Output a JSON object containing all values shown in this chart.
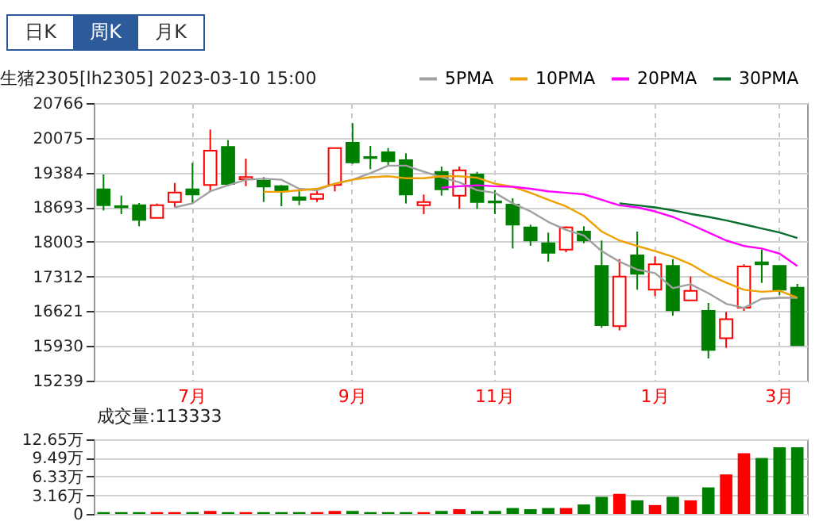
{
  "chart_data": [
    {
      "type": "candlestick",
      "title": "生猪2305[lh2305] 2023-03-10 15:00",
      "annotations": [
        "日K",
        "周K",
        "月K"
      ],
      "categories": [
        null,
        null,
        null,
        null,
        null,
        "7月",
        null,
        null,
        null,
        null,
        null,
        null,
        null,
        null,
        "9月",
        null,
        null,
        null,
        null,
        null,
        null,
        null,
        "11月",
        null,
        null,
        null,
        null,
        null,
        null,
        null,
        null,
        "1月",
        null,
        null,
        null,
        null,
        null,
        null,
        "3月",
        null
      ],
      "ohlc": [
        [
          19050,
          19345,
          18629,
          18734
        ],
        [
          18713,
          18924,
          18555,
          18692
        ],
        [
          18734,
          18776,
          18313,
          18439
        ],
        [
          18482,
          18766,
          18482,
          18734
        ],
        [
          18797,
          19176,
          18692,
          18987
        ],
        [
          19050,
          19576,
          18766,
          18945
        ],
        [
          19134,
          20240,
          19008,
          19819
        ],
        [
          19892,
          20029,
          19113,
          19155
        ],
        [
          19250,
          19661,
          19113,
          19292
        ],
        [
          19219,
          19292,
          18797,
          19103
        ],
        [
          19113,
          19134,
          18713,
          19008
        ],
        [
          18892,
          19029,
          18734,
          18840
        ],
        [
          18861,
          19029,
          18797,
          18955
        ],
        [
          19134,
          19871,
          19008,
          19871
        ],
        [
          19976,
          20366,
          19555,
          19587
        ],
        [
          19692,
          19913,
          19450,
          19671
        ],
        [
          19787,
          19871,
          19503,
          19608
        ],
        [
          19629,
          19766,
          18766,
          18945
        ],
        [
          18734,
          18945,
          18555,
          18797
        ],
        [
          19397,
          19503,
          18924,
          19050
        ],
        [
          18924,
          19503,
          18661,
          19429
        ],
        [
          19345,
          19397,
          18661,
          18797
        ],
        [
          18808,
          19029,
          18555,
          18787
        ],
        [
          18745,
          18871,
          17871,
          18345
        ],
        [
          18292,
          18345,
          17924,
          18029
        ],
        [
          17976,
          18187,
          17608,
          17787
        ],
        [
          17850,
          18313,
          17797,
          18292
        ],
        [
          18208,
          18313,
          17976,
          18029
        ],
        [
          17524,
          18029,
          16292,
          16345
        ],
        [
          16324,
          17661,
          16240,
          17313
        ],
        [
          17734,
          18208,
          17050,
          17366
        ],
        [
          17050,
          17713,
          16924,
          17555
        ],
        [
          17524,
          17661,
          16534,
          16640
        ],
        [
          16839,
          17313,
          16839,
          17029
        ],
        [
          16629,
          16787,
          15681,
          15850
        ],
        [
          16082,
          16608,
          15892,
          16461
        ],
        [
          16692,
          17555,
          16629,
          17513
        ],
        [
          17597,
          17850,
          17187,
          17555
        ],
        [
          17524,
          17524,
          16945,
          17050
        ],
        [
          17092,
          17166,
          15945,
          15945
        ]
      ],
      "colors": [
        "#008000",
        "#008000",
        "#008000",
        "#ff0000",
        "#ff0000",
        "#008000",
        "#ff0000",
        "#008000",
        "#ff0000",
        "#008000",
        "#008000",
        "#008000",
        "#ff0000",
        "#ff0000",
        "#008000",
        "#008000",
        "#008000",
        "#008000",
        "#ff0000",
        "#008000",
        "#ff0000",
        "#008000",
        "#008000",
        "#008000",
        "#008000",
        "#008000",
        "#ff0000",
        "#008000",
        "#008000",
        "#ff0000",
        "#008000",
        "#ff0000",
        "#008000",
        "#ff0000",
        "#008000",
        "#ff0000",
        "#ff0000",
        "#008000",
        "#008000",
        "#008000"
      ],
      "series": [
        {
          "name": "5PMA",
          "type": "line",
          "color": "#a0a0a0",
          "values": [
            null,
            null,
            null,
            null,
            18690,
            18770,
            19010,
            19130,
            19240,
            19260,
            19240,
            19060,
            19030,
            19160,
            19240,
            19370,
            19520,
            19520,
            19400,
            19290,
            19190,
            19030,
            18980,
            18770,
            18610,
            18400,
            18240,
            18130,
            17820,
            17610,
            17450,
            17380,
            17080,
            17160,
            16980,
            16770,
            16690,
            16870,
            16890,
            16890
          ]
        },
        {
          "name": "10PMA",
          "type": "line",
          "color": "#f0a000",
          "values": [
            null,
            null,
            null,
            null,
            null,
            null,
            null,
            null,
            null,
            19000,
            19000,
            19030,
            19060,
            19160,
            19240,
            19290,
            19310,
            19270,
            19270,
            19310,
            19310,
            19280,
            19160,
            19100,
            18980,
            18840,
            18710,
            18520,
            18210,
            18030,
            17920,
            17820,
            17710,
            17560,
            17350,
            17190,
            17050,
            17010,
            17030,
            16890
          ]
        },
        {
          "name": "20PMA",
          "type": "line",
          "color": "#ff00ff",
          "values": [
            null,
            null,
            null,
            null,
            null,
            null,
            null,
            null,
            null,
            null,
            null,
            null,
            null,
            null,
            null,
            null,
            null,
            null,
            null,
            19080,
            19110,
            19130,
            19110,
            19100,
            19060,
            19010,
            18980,
            18950,
            18840,
            18730,
            18690,
            18610,
            18500,
            18350,
            18190,
            18030,
            17920,
            17870,
            17770,
            17520
          ]
        },
        {
          "name": "30PMA",
          "type": "line",
          "color": "#0a6e2e",
          "values": [
            null,
            null,
            null,
            null,
            null,
            null,
            null,
            null,
            null,
            null,
            null,
            null,
            null,
            null,
            null,
            null,
            null,
            null,
            null,
            null,
            null,
            null,
            null,
            null,
            null,
            null,
            null,
            null,
            null,
            18770,
            18730,
            18690,
            18630,
            18560,
            18500,
            18430,
            18350,
            18270,
            18190,
            18080
          ]
        }
      ],
      "ylim": [
        15239,
        20766
      ],
      "yticks": [
        15239,
        15930,
        16621,
        17312,
        18003,
        18693,
        19384,
        20075,
        20766
      ],
      "grid": true,
      "legend": "top right"
    },
    {
      "type": "bar",
      "title": "成交量:113333",
      "categories": [
        null,
        null,
        null,
        null,
        null,
        null,
        null,
        null,
        null,
        null,
        null,
        null,
        null,
        null,
        null,
        null,
        null,
        null,
        null,
        null,
        null,
        null,
        null,
        null,
        null,
        null,
        null,
        null,
        null,
        null,
        null,
        null,
        null,
        null,
        null,
        null,
        null,
        null,
        null,
        null
      ],
      "values": [
        0.3,
        0.3,
        0.3,
        0.3,
        0.3,
        0.3,
        0.5,
        0.3,
        0.3,
        0.3,
        0.3,
        0.3,
        0.3,
        0.5,
        0.5,
        0.3,
        0.3,
        0.3,
        0.3,
        0.5,
        0.8,
        0.5,
        0.5,
        1.0,
        0.8,
        1.0,
        1.0,
        1.6,
        2.9,
        3.4,
        2.3,
        1.5,
        2.9,
        2.3,
        4.5,
        6.7,
        10.3,
        9.5,
        11.3,
        11.3
      ],
      "colors": [
        "#008000",
        "#008000",
        "#008000",
        "#ff0000",
        "#ff0000",
        "#008000",
        "#ff0000",
        "#008000",
        "#ff0000",
        "#008000",
        "#008000",
        "#008000",
        "#ff0000",
        "#ff0000",
        "#008000",
        "#008000",
        "#008000",
        "#008000",
        "#ff0000",
        "#008000",
        "#ff0000",
        "#008000",
        "#008000",
        "#008000",
        "#008000",
        "#008000",
        "#ff0000",
        "#008000",
        "#008000",
        "#ff0000",
        "#008000",
        "#ff0000",
        "#008000",
        "#ff0000",
        "#008000",
        "#ff0000",
        "#ff0000",
        "#008000",
        "#008000",
        "#008000"
      ],
      "ylim": [
        0,
        12.65
      ],
      "yticks": [
        0,
        {
          "value": 3.16,
          "label": "3.16万"
        },
        {
          "value": 6.33,
          "label": "6.33万"
        },
        {
          "value": 9.49,
          "label": "9.49万"
        },
        {
          "value": 12.65,
          "label": "12.65万"
        }
      ],
      "grid": true,
      "tick_labels": "y"
    }
  ]
}
